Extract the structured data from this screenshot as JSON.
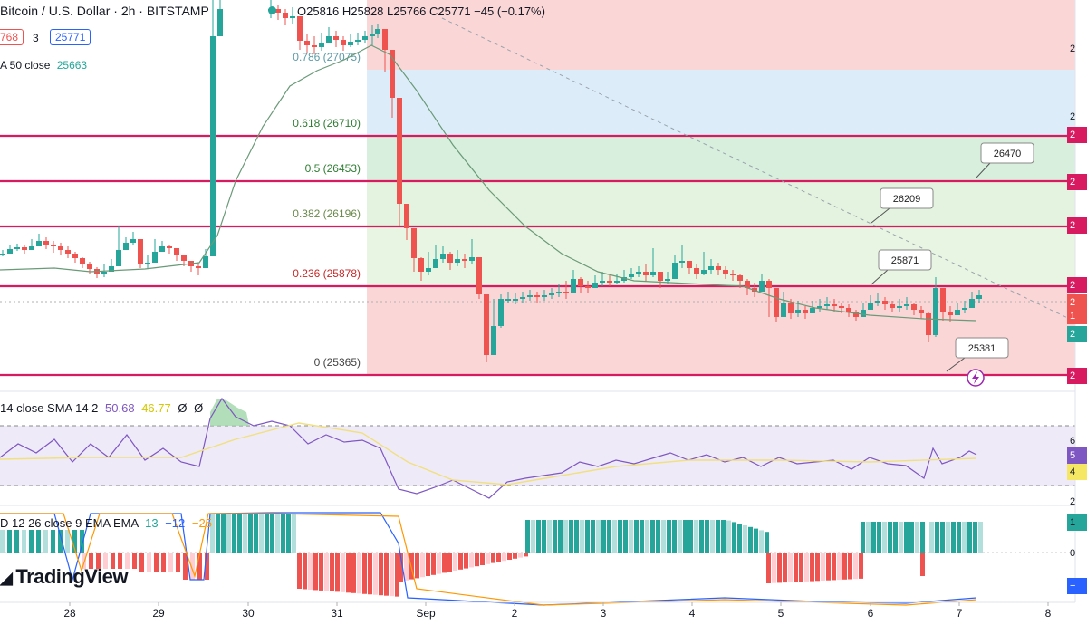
{
  "header": {
    "symbol_line": "Bitcoin / U.S. Dollar · 2h · BITSTAMP",
    "ohlc": "O25816 H25828 L25766 C25771 −45 (−0.17%)",
    "bid": "768",
    "spread": "3",
    "ask": "25771",
    "ma_label": "A 50 close",
    "ma_value": "25663"
  },
  "colors": {
    "up": "#26a69a",
    "down": "#ef5350",
    "fib_line": "#d81b60",
    "ma": "#6a9a78",
    "rsi": "#7e57c2",
    "macd_line": "#2962ff",
    "signal_line": "#ff9800"
  },
  "rsi_header": {
    "label": "14 close SMA 14 2",
    "v1": "50.68",
    "v2": "46.77",
    "v3": "Ø",
    "v4": "Ø"
  },
  "macd_header": {
    "label": "D 12 26 close 9 EMA EMA",
    "v1": "13",
    "v2": "−12",
    "v3": "−25"
  },
  "logo": "TradingView",
  "chart_data": {
    "type": "candlestick",
    "x_labels": [
      "28",
      "29",
      "30",
      "31",
      "Sep",
      "2",
      "3",
      "4",
      "5",
      "6",
      "7",
      "8"
    ],
    "fib_levels": [
      {
        "label": "0.786 (27075)",
        "price": 27075
      },
      {
        "label": "0.618 (26710)",
        "price": 26710
      },
      {
        "label": "0.5 (26453)",
        "price": 26453
      },
      {
        "label": "0.382 (26196)",
        "price": 26196
      },
      {
        "label": "0.236 (25878)",
        "price": 25878
      },
      {
        "label": "0 (25365)",
        "price": 25365
      }
    ],
    "callouts": [
      "26470",
      "26209",
      "25871",
      "25381"
    ],
    "axis_right_labels": [
      "2",
      "2",
      "2",
      "2",
      "2",
      "2",
      "2",
      "1",
      "2",
      "2"
    ],
    "rsi_axis_labels": [
      "6",
      "5",
      "4",
      "2"
    ],
    "macd_axis_labels": [
      "1",
      "0",
      "−"
    ]
  }
}
